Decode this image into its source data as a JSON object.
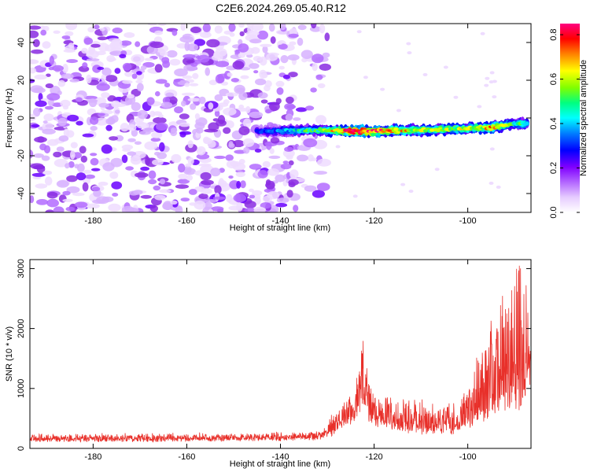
{
  "figure": {
    "title": "C2E6.2024.269.05.40.R12"
  },
  "chart_data": [
    {
      "type": "heatmap",
      "xlabel": "Height of straight line (km)",
      "ylabel": "Frequency (Hz)",
      "xlim": [
        -193.5,
        -86.5
      ],
      "ylim": [
        -50,
        50
      ],
      "xticks": [
        -180,
        -160,
        -140,
        -120,
        -100
      ],
      "yticks": [
        -40,
        -20,
        0,
        20,
        40
      ],
      "grid": false,
      "colorbar": {
        "label": "Normalized spectral amplitude",
        "range": [
          0,
          0.85
        ],
        "ticks": [
          0.0,
          0.2,
          0.4,
          0.6,
          0.8
        ],
        "colormap": [
          "#ffffff",
          "#e6ccff",
          "#b366ff",
          "#8000ff",
          "#0000ff",
          "#0080ff",
          "#00ffff",
          "#00ff80",
          "#80ff00",
          "#ffff00",
          "#ff8000",
          "#ff0000",
          "#ff0080"
        ]
      },
      "regions": {
        "noise_x_range": [
          -193.5,
          -130
        ],
        "signal_track": {
          "x": [
            -145,
            -140,
            -135,
            -130,
            -125,
            -120,
            -115,
            -110,
            -105,
            -100,
            -95,
            -90,
            -87
          ],
          "frequency_hz": [
            -7,
            -7,
            -6.5,
            -6.5,
            -7,
            -7,
            -6.5,
            -6.5,
            -6,
            -5.5,
            -5,
            -3,
            -3
          ],
          "peak_amplitude": [
            0.25,
            0.35,
            0.45,
            0.55,
            0.8,
            0.75,
            0.65,
            0.6,
            0.55,
            0.6,
            0.65,
            0.45,
            0.5
          ]
        }
      }
    },
    {
      "type": "line",
      "xlabel": "Height of straight line (km)",
      "ylabel": "SNR (10 * v/v)",
      "xlim": [
        -193.5,
        -86.5
      ],
      "ylim": [
        0,
        3150
      ],
      "xticks": [
        -180,
        -160,
        -140,
        -120,
        -100
      ],
      "yticks": [
        0,
        1000,
        2000,
        3000
      ],
      "grid": false,
      "series": [
        {
          "color": "#e8302a",
          "envelope": {
            "x": [
              -193.5,
              -170,
              -150,
              -132,
              -128,
              -126,
              -124,
              -122.5,
              -121,
              -118,
              -115,
              -110,
              -105,
              -102,
              -100,
              -98,
              -96,
              -94,
              -92,
              -90,
              -88.5,
              -87,
              -86.5
            ],
            "baseline": [
              140,
              140,
              150,
              170,
              300,
              450,
              550,
              800,
              500,
              400,
              350,
              300,
              300,
              280,
              400,
              500,
              600,
              700,
              800,
              800,
              700,
              1300,
              1400
            ],
            "peak": [
              260,
              260,
              270,
              300,
              600,
              800,
              950,
              1900,
              1000,
              900,
              850,
              800,
              750,
              700,
              1200,
              1600,
              1800,
              2400,
              2600,
              2800,
              3150,
              2300,
              1700
            ]
          }
        }
      ]
    }
  ]
}
